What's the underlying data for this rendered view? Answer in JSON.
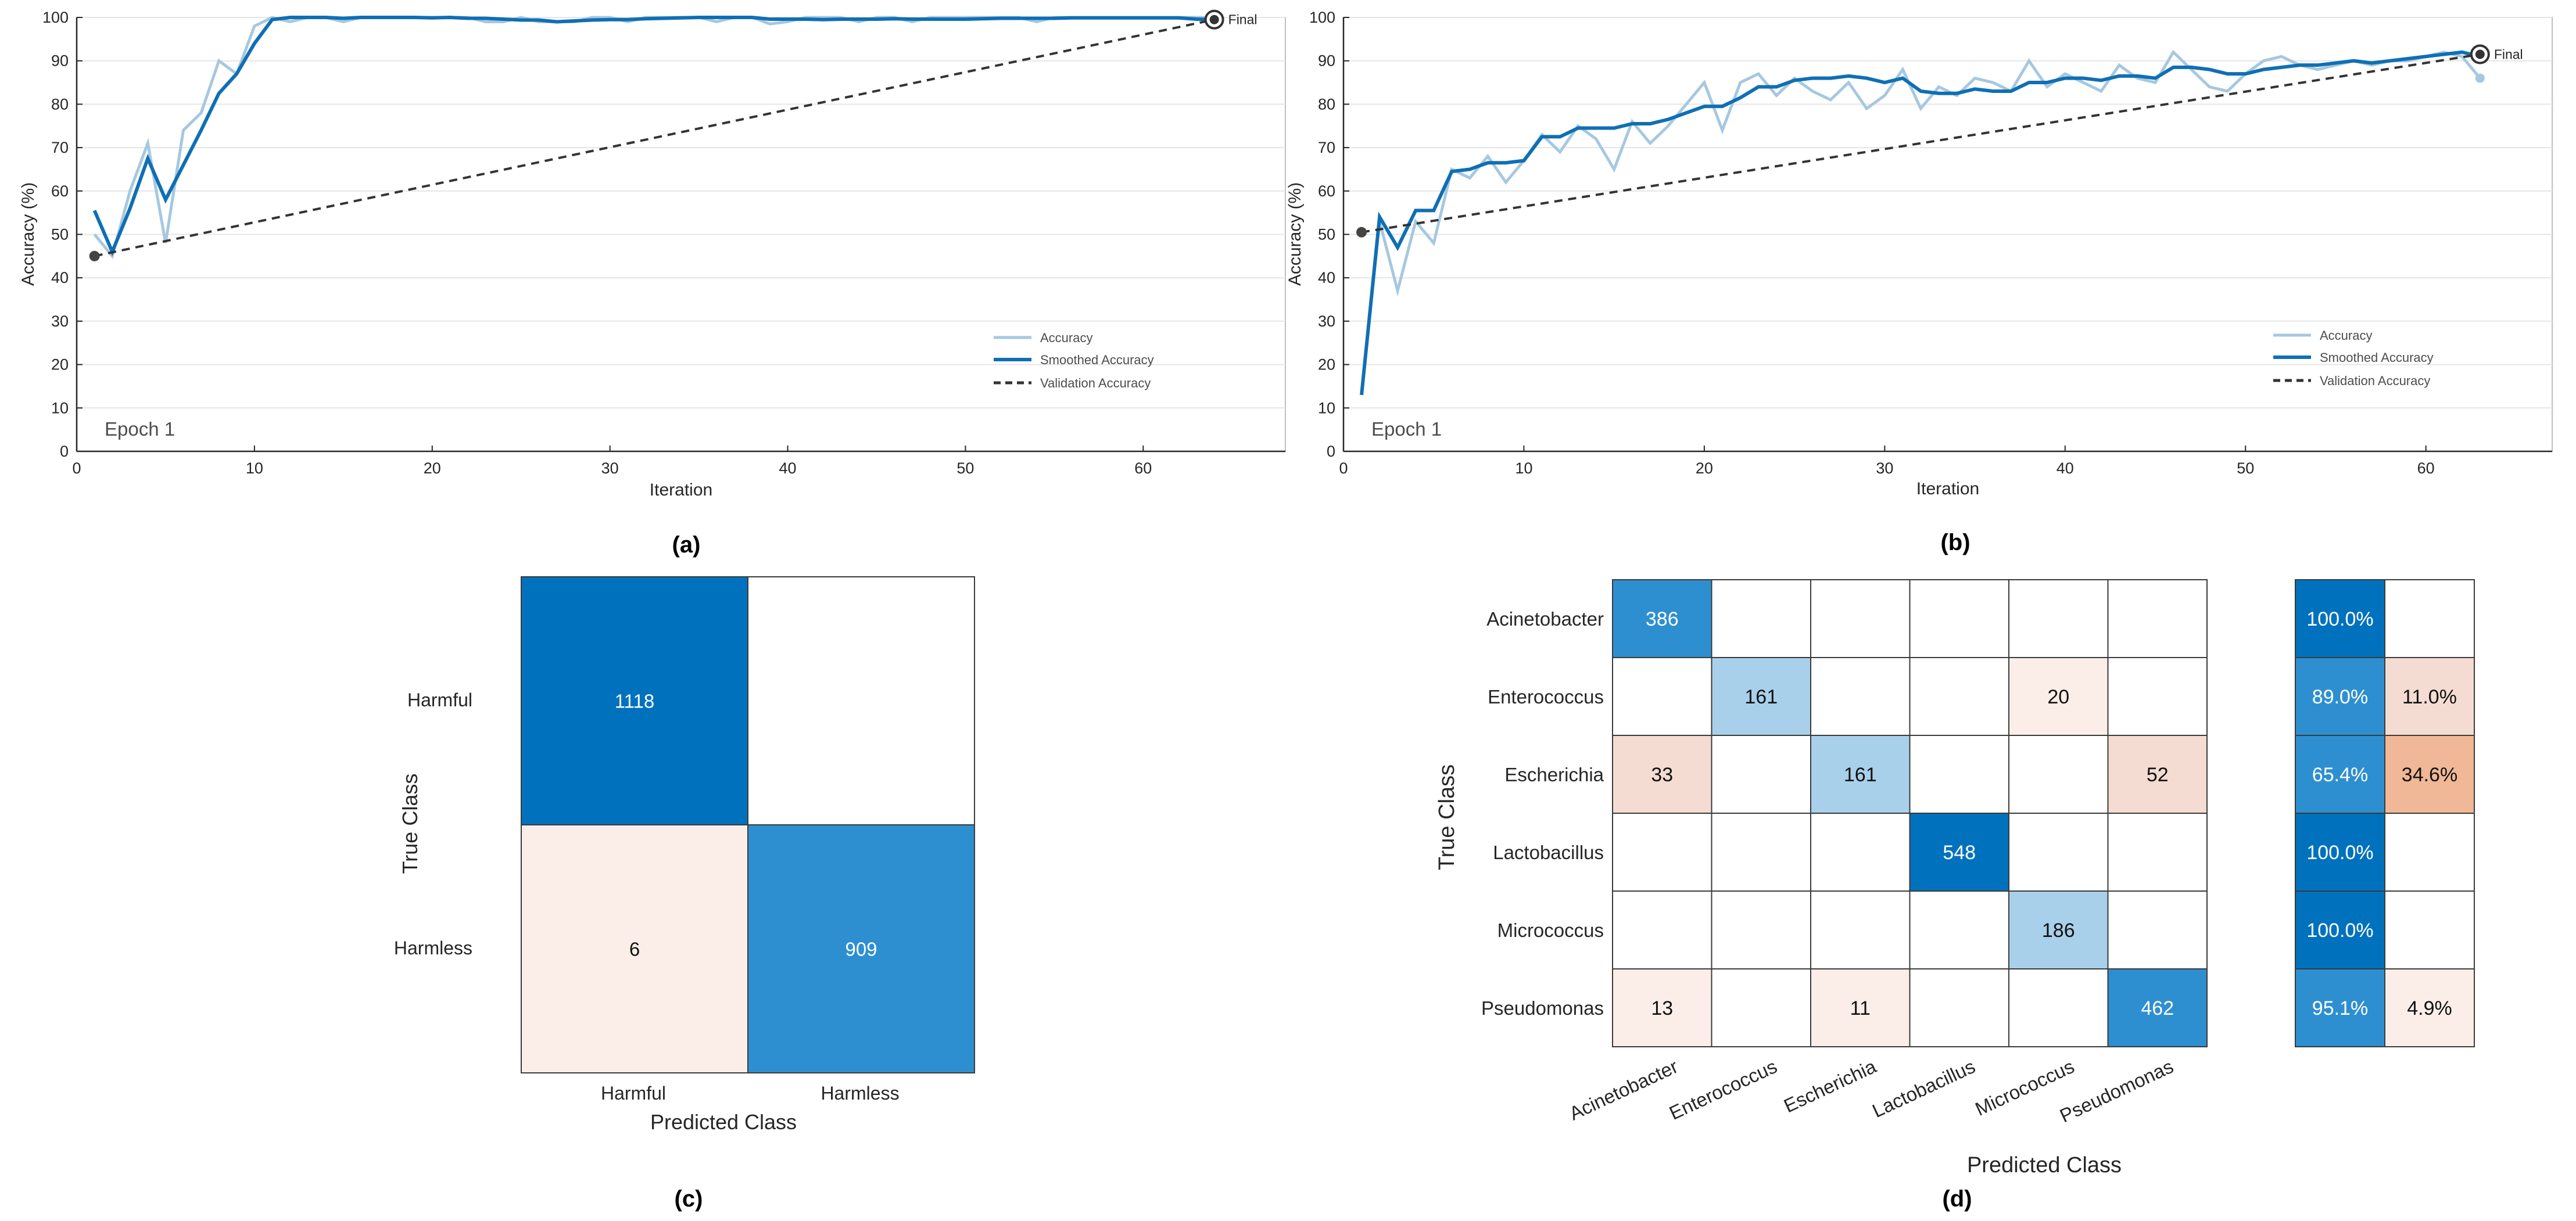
{
  "colors": {
    "raw": "#a6c8e0",
    "smoothed": "#0f6fb5",
    "validation": "#333333",
    "grid": "#e6e6e6",
    "axis": "#262626",
    "cm_dark": "#0072bd",
    "cm_mid": "#2e8fd0",
    "cm_light": "#a9d0ea",
    "cm_pale": "#fbeee8",
    "cm_pale2": "#f4dcd2",
    "cm_orange": "#f0b896"
  },
  "chart_data": [
    {
      "type": "line",
      "panel_label": "(a)",
      "xlabel": "Iteration",
      "ylabel": "Accuracy (%)",
      "xlim": [
        0,
        68
      ],
      "ylim": [
        0,
        100
      ],
      "xticks": [
        0,
        10,
        20,
        30,
        40,
        50,
        60
      ],
      "yticks": [
        0,
        10,
        20,
        30,
        40,
        50,
        60,
        70,
        80,
        90,
        100
      ],
      "epoch_label": "Epoch 1",
      "final_label": "Final",
      "legend": [
        "Accuracy",
        "Smoothed Accuracy",
        "Validation Accuracy"
      ],
      "series": [
        {
          "name": "Accuracy",
          "x": [
            1,
            2,
            3,
            4,
            5,
            6,
            7,
            8,
            9,
            10,
            11,
            12,
            13,
            14,
            15,
            16,
            17,
            18,
            19,
            20,
            21,
            22,
            23,
            24,
            25,
            26,
            27,
            28,
            29,
            30,
            31,
            32,
            33,
            34,
            35,
            36,
            37,
            38,
            39,
            40,
            41,
            42,
            43,
            44,
            45,
            46,
            47,
            48,
            49,
            50,
            51,
            52,
            53,
            54,
            55,
            56,
            57,
            58,
            59,
            60,
            61,
            62,
            63,
            64
          ],
          "y": [
            50,
            45,
            60,
            71,
            48,
            74,
            78,
            90,
            87,
            98,
            100,
            99,
            100,
            100,
            99,
            100,
            100,
            100,
            100,
            100,
            100,
            100,
            99,
            99,
            100,
            99,
            99,
            99,
            100,
            100,
            99,
            100,
            100,
            100,
            100,
            99,
            100,
            100,
            98.5,
            99,
            100,
            100,
            100,
            99,
            100,
            100,
            99,
            100,
            100,
            100,
            100,
            100,
            100,
            99,
            100,
            100,
            100,
            100,
            100,
            100,
            100,
            100,
            100,
            100
          ]
        },
        {
          "name": "Smoothed Accuracy",
          "x": [
            1,
            2,
            3,
            4,
            5,
            6,
            7,
            8,
            9,
            10,
            11,
            12,
            13,
            14,
            15,
            16,
            17,
            18,
            19,
            20,
            21,
            22,
            23,
            24,
            25,
            26,
            27,
            28,
            29,
            30,
            31,
            32,
            33,
            34,
            35,
            36,
            37,
            38,
            39,
            40,
            41,
            42,
            43,
            44,
            45,
            46,
            47,
            48,
            49,
            50,
            51,
            52,
            53,
            54,
            55,
            56,
            57,
            58,
            59,
            60,
            61,
            62,
            63,
            64
          ],
          "y": [
            55.5,
            46,
            56,
            67.5,
            58,
            66,
            74,
            82.5,
            87,
            94,
            99.5,
            100,
            100,
            100,
            99.8,
            100,
            100,
            100,
            100,
            99.9,
            100,
            99.8,
            99.8,
            99.6,
            99.4,
            99.4,
            99,
            99.2,
            99.4,
            99.5,
            99.5,
            99.7,
            99.8,
            99.9,
            100,
            100,
            100,
            100,
            99.6,
            99.6,
            99.6,
            99.5,
            99.6,
            99.6,
            99.6,
            99.7,
            99.6,
            99.6,
            99.6,
            99.6,
            99.7,
            99.8,
            99.8,
            99.8,
            99.8,
            99.9,
            99.9,
            99.9,
            99.9,
            99.9,
            99.9,
            99.9,
            99.6,
            99.5
          ]
        },
        {
          "name": "Validation Accuracy",
          "x": [
            1,
            64
          ],
          "y": [
            45,
            99.5
          ]
        }
      ]
    },
    {
      "type": "line",
      "panel_label": "(b)",
      "xlabel": "Iteration",
      "ylabel": "Accuracy (%)",
      "xlim": [
        0,
        67
      ],
      "ylim": [
        0,
        100
      ],
      "xticks": [
        0,
        10,
        20,
        30,
        40,
        50,
        60
      ],
      "yticks": [
        0,
        10,
        20,
        30,
        40,
        50,
        60,
        70,
        80,
        90,
        100
      ],
      "epoch_label": "Epoch 1",
      "final_label": "Final",
      "legend": [
        "Accuracy",
        "Smoothed Accuracy",
        "Validation Accuracy"
      ],
      "series": [
        {
          "name": "Accuracy",
          "x": [
            1,
            2,
            3,
            4,
            5,
            6,
            7,
            8,
            9,
            10,
            11,
            12,
            13,
            14,
            15,
            16,
            17,
            18,
            19,
            20,
            21,
            22,
            23,
            24,
            25,
            26,
            27,
            28,
            29,
            30,
            31,
            32,
            33,
            34,
            35,
            36,
            37,
            38,
            39,
            40,
            41,
            42,
            43,
            44,
            45,
            46,
            47,
            48,
            49,
            50,
            51,
            52,
            53,
            54,
            55,
            56,
            57,
            58,
            59,
            60,
            61,
            62,
            63
          ],
          "y": [
            13,
            53,
            37,
            53,
            48,
            65,
            63,
            68,
            62,
            67,
            73,
            69,
            75,
            72,
            65,
            76,
            71,
            75,
            80,
            85,
            74,
            85,
            87,
            82,
            86,
            83,
            81,
            85,
            79,
            82,
            88,
            79,
            84,
            82,
            86,
            85,
            83,
            90,
            84,
            87,
            85,
            83,
            89,
            86,
            85,
            92,
            88,
            84,
            83,
            87,
            90,
            91,
            89,
            88,
            89,
            90,
            89,
            90,
            90,
            91,
            92,
            91,
            86
          ]
        },
        {
          "name": "Smoothed Accuracy",
          "x": [
            1,
            2,
            3,
            4,
            5,
            6,
            7,
            8,
            9,
            10,
            11,
            12,
            13,
            14,
            15,
            16,
            17,
            18,
            19,
            20,
            21,
            22,
            23,
            24,
            25,
            26,
            27,
            28,
            29,
            30,
            31,
            32,
            33,
            34,
            35,
            36,
            37,
            38,
            39,
            40,
            41,
            42,
            43,
            44,
            45,
            46,
            47,
            48,
            49,
            50,
            51,
            52,
            53,
            54,
            55,
            56,
            57,
            58,
            59,
            60,
            61,
            62,
            63
          ],
          "y": [
            13,
            54,
            47,
            55.5,
            55.5,
            64.5,
            65,
            66.5,
            66.5,
            67,
            72.5,
            72.5,
            74.5,
            74.5,
            74.5,
            75.5,
            75.5,
            76.5,
            78,
            79.5,
            79.5,
            81.5,
            84,
            84,
            85.5,
            86,
            86,
            86.5,
            86,
            85,
            86,
            83,
            82.5,
            82.5,
            83.5,
            83,
            83,
            85,
            85,
            86,
            86,
            85.5,
            86.5,
            86.5,
            86,
            88.5,
            88.5,
            88,
            87,
            87,
            88,
            88.5,
            89,
            89,
            89.5,
            90,
            89.5,
            90,
            90.5,
            91,
            91.5,
            92,
            91
          ]
        },
        {
          "name": "Validation Accuracy",
          "x": [
            1,
            63
          ],
          "y": [
            50.5,
            91.5
          ]
        }
      ]
    },
    {
      "type": "heatmap",
      "panel_label": "(c)",
      "xlabel": "Predicted Class",
      "ylabel": "True Class",
      "row_labels": [
        "Harmful",
        "Harmless"
      ],
      "col_labels": [
        "Harmful",
        "Harmless"
      ],
      "values": [
        [
          1118,
          0
        ],
        [
          6,
          909
        ]
      ],
      "cell_text": [
        [
          "1118",
          ""
        ],
        [
          "6",
          "909"
        ]
      ]
    },
    {
      "type": "heatmap",
      "panel_label": "(d)",
      "xlabel": "Predicted Class",
      "ylabel": "True Class",
      "row_labels": [
        "Acinetobacter",
        "Enterococcus",
        "Escherichia",
        "Lactobacillus",
        "Micrococcus",
        "Pseudomonas"
      ],
      "col_labels": [
        "Acinetobacter",
        "Enterococcus",
        "Escherichia",
        "Lactobacillus",
        "Micrococcus",
        "Pseudomonas"
      ],
      "values": [
        [
          386,
          0,
          0,
          0,
          0,
          0
        ],
        [
          0,
          161,
          0,
          0,
          20,
          0
        ],
        [
          33,
          0,
          161,
          0,
          0,
          52
        ],
        [
          0,
          0,
          0,
          548,
          0,
          0
        ],
        [
          0,
          0,
          0,
          0,
          186,
          0
        ],
        [
          13,
          0,
          11,
          0,
          0,
          462
        ]
      ],
      "cell_text": [
        [
          "386",
          "",
          "",
          "",
          "",
          ""
        ],
        [
          "",
          "161",
          "",
          "",
          "20",
          ""
        ],
        [
          "33",
          "",
          "161",
          "",
          "",
          "52"
        ],
        [
          "",
          "",
          "",
          "548",
          "",
          ""
        ],
        [
          "",
          "",
          "",
          "",
          "186",
          ""
        ],
        [
          "13",
          "",
          "11",
          "",
          "",
          "462"
        ]
      ],
      "row_summary": [
        [
          "100.0%",
          ""
        ],
        [
          "89.0%",
          "11.0%"
        ],
        [
          "65.4%",
          "34.6%"
        ],
        [
          "100.0%",
          ""
        ],
        [
          "100.0%",
          ""
        ],
        [
          "95.1%",
          "4.9%"
        ]
      ],
      "row_summary_values": [
        [
          100.0,
          0
        ],
        [
          89.0,
          11.0
        ],
        [
          65.4,
          34.6
        ],
        [
          100.0,
          0
        ],
        [
          100.0,
          0
        ],
        [
          95.1,
          4.9
        ]
      ]
    }
  ]
}
